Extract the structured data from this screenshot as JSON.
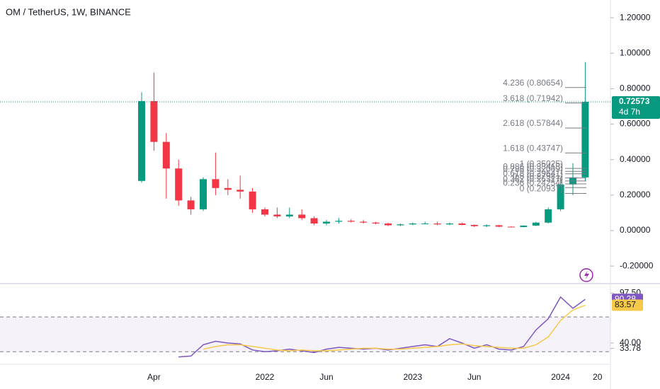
{
  "chart_data": [
    {
      "type": "candlestick",
      "title": "OM / TetherUS, 1W, BINANCE",
      "categories": [
        null,
        "Apr",
        null,
        null,
        null,
        null,
        null,
        null,
        null,
        null,
        "2022",
        null,
        null,
        null,
        null,
        "Jun",
        null,
        null,
        null,
        null,
        null,
        null,
        "2023",
        null,
        null,
        null,
        null,
        "Jun",
        null,
        null,
        null,
        null,
        null,
        null,
        "2024",
        null,
        null,
        "20"
      ],
      "open": [
        0.28,
        0.73,
        0.5,
        0.35,
        0.17,
        0.12,
        0.29,
        0.24,
        0.23,
        0.22,
        0.12,
        0.09,
        0.08,
        0.09,
        0.07,
        0.04,
        0.05,
        0.055,
        0.05,
        0.045,
        0.04,
        0.03,
        0.035,
        0.04,
        0.04,
        0.035,
        0.04,
        0.032,
        0.025,
        0.03,
        0.022,
        0.02,
        0.028,
        0.045,
        0.12,
        0.26,
        0.3,
        null
      ],
      "high": [
        0.78,
        0.89,
        0.55,
        0.4,
        0.19,
        0.3,
        0.44,
        0.29,
        0.31,
        0.24,
        0.13,
        0.13,
        0.13,
        0.12,
        0.08,
        0.06,
        0.07,
        0.065,
        0.06,
        0.05,
        0.045,
        0.04,
        0.045,
        0.05,
        0.05,
        0.045,
        0.045,
        0.035,
        0.035,
        0.032,
        0.025,
        0.03,
        0.05,
        0.13,
        0.3,
        0.38,
        0.95,
        null
      ],
      "low": [
        0.27,
        0.45,
        0.18,
        0.14,
        0.09,
        0.11,
        0.2,
        0.2,
        0.18,
        0.1,
        0.08,
        0.07,
        0.07,
        0.06,
        0.03,
        0.03,
        0.04,
        0.045,
        0.04,
        0.035,
        0.025,
        0.025,
        0.03,
        0.035,
        0.03,
        0.03,
        0.03,
        0.02,
        0.02,
        0.02,
        0.018,
        0.018,
        0.026,
        0.04,
        0.11,
        0.2,
        0.28,
        null
      ],
      "close": [
        0.73,
        0.5,
        0.35,
        0.17,
        0.12,
        0.29,
        0.24,
        0.23,
        0.22,
        0.12,
        0.09,
        0.08,
        0.09,
        0.07,
        0.04,
        0.05,
        0.055,
        0.05,
        0.045,
        0.04,
        0.03,
        0.035,
        0.04,
        0.04,
        0.035,
        0.04,
        0.032,
        0.025,
        0.03,
        0.022,
        0.02,
        0.028,
        0.045,
        0.12,
        0.26,
        0.3,
        0.72573,
        null
      ],
      "up_color": "#089981",
      "down_color": "#f23645",
      "ylim": [
        -0.295,
        1.3
      ],
      "yticks": [
        {
          "value": 1.2,
          "label": "1.20000"
        },
        {
          "value": 1.0,
          "label": "1.00000"
        },
        {
          "value": 0.8,
          "label": "0.80000"
        },
        {
          "value": 0.6,
          "label": "0.60000"
        },
        {
          "value": 0.4,
          "label": "0.40000"
        },
        {
          "value": 0.2,
          "label": "0.20000"
        },
        {
          "value": 0,
          "label": "0.00000"
        },
        {
          "value": -0.2,
          "label": "-0.20000"
        }
      ],
      "countdown": "4d 7h",
      "fib_levels": [
        {
          "value": 0.80654,
          "label": "4.236 (0.80654)"
        },
        {
          "value": 0.71942,
          "label": "3.618 (0.71942)"
        },
        {
          "value": 0.57844,
          "label": "2.618 (0.57844)"
        },
        {
          "value": 0.43747,
          "label": "1.618 (0.43747)"
        },
        {
          "value": 0.35025,
          "label": "1 (0.35025)"
        },
        {
          "value": 0.33418,
          "label": "0.886 (0.33418)"
        },
        {
          "value": 0.32009,
          "label": "0.786 (0.32009)"
        },
        {
          "value": 0.29641,
          "label": "0.618 (0.29641)"
        },
        {
          "value": 0.27981,
          "label": "0.5 (0.27981)"
        },
        {
          "value": 0.26317,
          "label": "0.382 (0.26317)"
        },
        {
          "value": 0.24254,
          "label": "0.236 (0.24254)"
        },
        {
          "value": 0.20937,
          "label": "0 (0.20937)"
        }
      ]
    },
    {
      "type": "line",
      "ylim": [
        18,
        106
      ],
      "yticks": [
        {
          "value": 97.5,
          "label": "97.50"
        },
        {
          "value": 40,
          "label": "40.00"
        },
        33.78
      ],
      "bands": [
        30,
        70
      ],
      "series": [
        {
          "color": "#7e57c2",
          "values": [
            null,
            null,
            null,
            24,
            25,
            38,
            42,
            40,
            39,
            32,
            30,
            31,
            33,
            31,
            29,
            33,
            35,
            34,
            33,
            34,
            32,
            34,
            36,
            38,
            36,
            45,
            40,
            34,
            38,
            33,
            32,
            36,
            55,
            68,
            93,
            80,
            90.28,
            null
          ]
        },
        {
          "color": "#f7c948",
          "values": [
            null,
            null,
            null,
            null,
            null,
            33,
            36,
            38,
            38,
            36,
            34,
            32,
            31,
            32,
            31,
            31,
            32,
            33,
            34,
            34,
            33,
            33,
            34,
            35,
            36,
            38,
            39,
            37,
            36,
            35,
            34,
            34,
            38,
            47,
            66,
            78,
            83.57,
            null
          ]
        }
      ]
    }
  ]
}
